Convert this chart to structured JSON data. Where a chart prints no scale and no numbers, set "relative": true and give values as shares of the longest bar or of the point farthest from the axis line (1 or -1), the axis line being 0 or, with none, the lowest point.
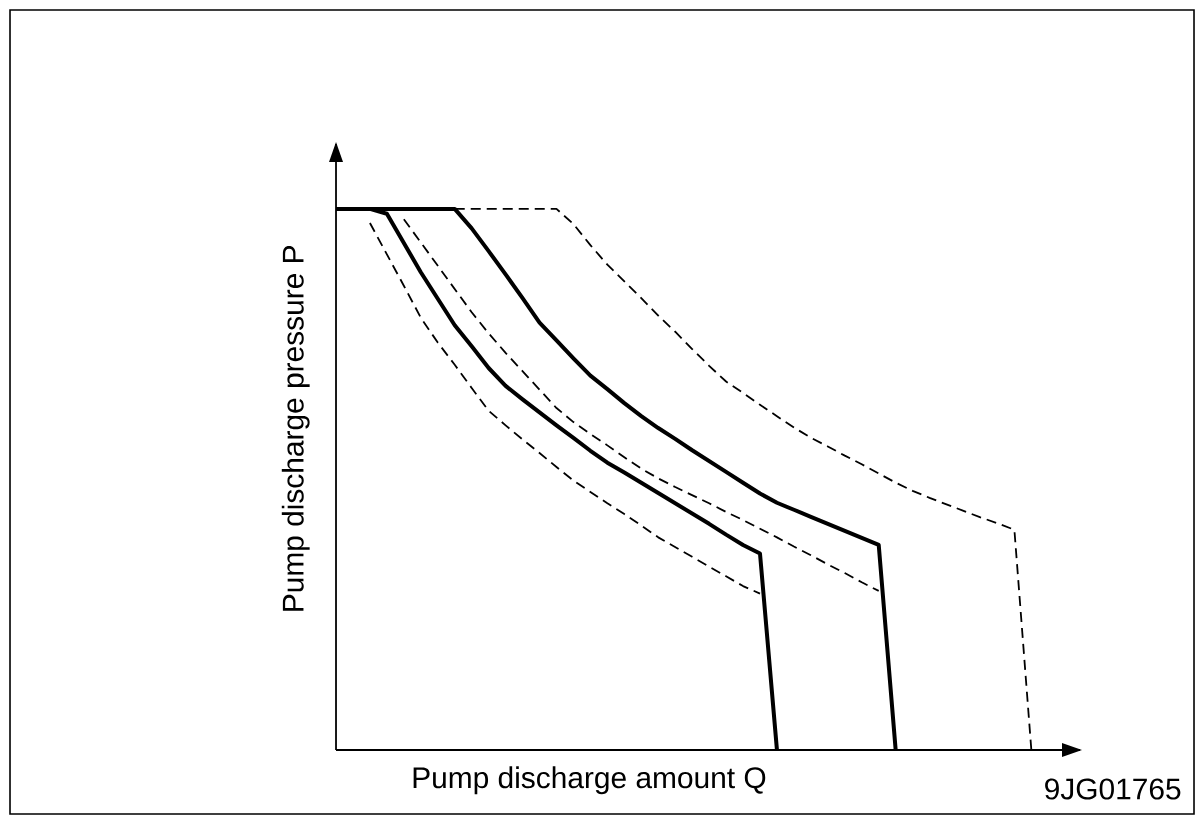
{
  "chart_data": {
    "type": "line",
    "xlabel": "Pump discharge amount Q",
    "ylabel": "Pump discharge pressure P",
    "relative": true,
    "marker": "none",
    "annotations": [
      "9JG01765"
    ],
    "categories": [
      null,
      null,
      null,
      null,
      null,
      null,
      null,
      null,
      null,
      null,
      null,
      null,
      null,
      null,
      null,
      null,
      null,
      null,
      null,
      null,
      null,
      null,
      null,
      null,
      null,
      null,
      null,
      null,
      null,
      null,
      null,
      null,
      null,
      null,
      null,
      null,
      null,
      null,
      null,
      null,
      null,
      null
    ],
    "series": [
      {
        "color": "#000000",
        "line_style": "solid",
        "values": [
          1,
          1,
          1,
          1,
          1,
          1,
          1,
          1,
          0.964,
          0.922,
          0.879,
          0.835,
          0.79,
          0.757,
          0.724,
          0.692,
          0.667,
          0.641,
          0.617,
          0.595,
          0.575,
          0.554,
          0.534,
          0.514,
          0.494,
          0.474,
          0.457,
          0.444,
          0.431,
          0.418,
          0.405,
          0.392,
          0.379,
          0,
          null,
          null,
          null,
          null,
          null,
          null,
          null,
          null
        ]
      },
      {
        "color": "#000000",
        "line_style": "dashed",
        "values": [
          null,
          null,
          null,
          null,
          null,
          null,
          null,
          1,
          1,
          1,
          1,
          1,
          1,
          1,
          0.972,
          0.933,
          0.897,
          0.866,
          0.835,
          0.803,
          0.773,
          0.741,
          0.71,
          0.681,
          0.66,
          0.638,
          0.617,
          0.596,
          0.577,
          0.561,
          0.544,
          0.528,
          0.511,
          0.494,
          0.479,
          0.466,
          0.454,
          0.442,
          0.43,
          0.419,
          0.407,
          0
        ]
      },
      {
        "color": "#000000",
        "line_style": "solid",
        "values": [
          1,
          1,
          1,
          0.991,
          0.937,
          0.883,
          0.834,
          0.785,
          0.746,
          0.706,
          0.673,
          0.648,
          0.624,
          0.6,
          0.577,
          0.553,
          0.531,
          0.513,
          0.494,
          0.475,
          0.456,
          0.437,
          0.418,
          0.398,
          0.379,
          0.363,
          0,
          null,
          null,
          null,
          null,
          null,
          null,
          null,
          null,
          null,
          null,
          null,
          null,
          null,
          null,
          null
        ]
      },
      {
        "color": "#000000",
        "line_style": "dashed",
        "values": [
          null,
          null,
          0.974,
          0.916,
          0.858,
          0.799,
          0.753,
          0.712,
          0.669,
          0.627,
          0.6,
          0.574,
          0.549,
          0.523,
          0.498,
          0.477,
          0.456,
          0.436,
          0.415,
          0.393,
          0.375,
          0.357,
          0.339,
          0.321,
          0.303,
          0.289,
          null,
          null,
          null,
          null,
          null,
          null,
          null,
          null,
          null,
          null,
          null,
          null,
          null,
          null,
          null,
          null
        ]
      },
      {
        "color": "#000000",
        "line_style": "dashed",
        "values": [
          null,
          null,
          null,
          null,
          0.981,
          0.938,
          0.895,
          0.852,
          0.809,
          0.77,
          0.734,
          0.7,
          0.666,
          0.632,
          0.606,
          0.584,
          0.563,
          0.541,
          0.52,
          0.502,
          0.486,
          0.471,
          0.456,
          0.44,
          0.425,
          0.409,
          0.393,
          0.376,
          0.36,
          0.343,
          0.327,
          0.31,
          0.294,
          null,
          null,
          null,
          null,
          null,
          null,
          null,
          null,
          null
        ]
      }
    ]
  }
}
